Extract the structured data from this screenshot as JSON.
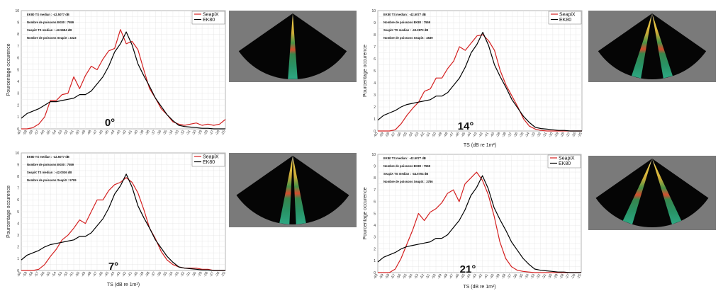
{
  "colors": {
    "seapix": "#d42020",
    "ek80": "#000000",
    "grid": "#e2e2e2",
    "sonar_bg": "#7a7a7a"
  },
  "chart_data": [
    {
      "type": "line",
      "angle": "0°",
      "ylabel": "Pourcentage occurence",
      "xlabel": "",
      "ylim": [
        0,
        10
      ],
      "xlim": [
        -60,
        -25
      ],
      "legend": [
        "SeapiX",
        "EK80"
      ],
      "annotations": [
        "EK80 TS median : -42.5077 dB",
        "Nombre de poissons EK80 : 7559",
        "SeapiX TS median : -42.5684 dB",
        "Nombre de poissons SeapiX : 3223"
      ],
      "x": [
        -60,
        -59,
        -58,
        -57,
        -56,
        -55,
        -54,
        -53,
        -52,
        -51,
        -50,
        -49,
        -48,
        -47,
        -46,
        -45,
        -44,
        -43,
        -42,
        -41,
        -40,
        -39,
        -38,
        -37,
        -36,
        -35,
        -34,
        -33,
        -32,
        -31,
        -30,
        -29,
        -28,
        -27,
        -26,
        -25
      ],
      "series": [
        {
          "name": "SeapiX",
          "values": [
            0.0,
            0.0,
            0.1,
            0.4,
            1.0,
            2.4,
            2.4,
            2.9,
            3.0,
            4.4,
            3.4,
            4.5,
            5.3,
            5.0,
            5.9,
            6.6,
            6.8,
            8.4,
            7.2,
            7.4,
            6.7,
            5.0,
            3.4,
            2.6,
            1.7,
            1.2,
            0.6,
            0.4,
            0.3,
            0.4,
            0.5,
            0.3,
            0.4,
            0.3,
            0.4,
            0.8
          ]
        },
        {
          "name": "EK80",
          "values": [
            0.9,
            1.3,
            1.5,
            1.7,
            2.0,
            2.3,
            2.3,
            2.4,
            2.5,
            2.6,
            2.9,
            2.9,
            3.2,
            3.8,
            4.4,
            5.3,
            6.5,
            7.2,
            8.2,
            7.1,
            5.5,
            4.5,
            3.6,
            2.6,
            1.9,
            1.2,
            0.7,
            0.3,
            0.2,
            0.15,
            0.1,
            0.05,
            0.05,
            0.0,
            0.0,
            0.0
          ]
        }
      ]
    },
    {
      "type": "line",
      "angle": "14°",
      "ylabel": "Pourcentage occurence",
      "xlabel": "TS (dB re 1m²)",
      "ylim": [
        0,
        10
      ],
      "xlim": [
        -60,
        -25
      ],
      "legend": [
        "SeapiX",
        "EK80"
      ],
      "annotations": [
        "EK80 TS median : -42.5077 dB",
        "Nombre de poissons EK80 : 7559",
        "SeapiX TS median : -43.2873 dB",
        "Nombre de poissons SeapiX : 4539"
      ],
      "x": [
        -60,
        -59,
        -58,
        -57,
        -56,
        -55,
        -54,
        -53,
        -52,
        -51,
        -50,
        -49,
        -48,
        -47,
        -46,
        -45,
        -44,
        -43,
        -42,
        -41,
        -40,
        -39,
        -38,
        -37,
        -36,
        -35,
        -34,
        -33,
        -32,
        -31,
        -30,
        -29,
        -28,
        -27,
        -26,
        -25
      ],
      "series": [
        {
          "name": "SeapiX",
          "values": [
            0.0,
            0.0,
            0.0,
            0.1,
            0.6,
            1.3,
            1.9,
            2.4,
            3.3,
            3.5,
            4.4,
            4.4,
            5.2,
            5.8,
            7.0,
            6.7,
            7.3,
            7.9,
            8.0,
            7.5,
            6.7,
            5.0,
            3.8,
            2.9,
            2.0,
            1.0,
            0.4,
            0.15,
            0.05,
            0.0,
            0.0,
            0.0,
            0.0,
            0.0,
            0.0,
            0.0
          ]
        },
        {
          "name": "EK80",
          "values": [
            0.9,
            1.3,
            1.5,
            1.7,
            2.0,
            2.2,
            2.3,
            2.4,
            2.5,
            2.6,
            2.9,
            2.9,
            3.2,
            3.8,
            4.4,
            5.3,
            6.5,
            7.2,
            8.2,
            7.1,
            5.5,
            4.5,
            3.6,
            2.6,
            1.9,
            1.2,
            0.7,
            0.3,
            0.2,
            0.15,
            0.1,
            0.05,
            0.05,
            0.0,
            0.0,
            0.0
          ]
        }
      ]
    },
    {
      "type": "line",
      "angle": "7°",
      "ylabel": "Pourcentage occurence",
      "xlabel": "TS (dB re 1m²)",
      "ylim": [
        0,
        10
      ],
      "xlim": [
        -60,
        -25
      ],
      "legend": [
        "SeapiX",
        "EK80"
      ],
      "annotations": [
        "EK80 TS median : -42.5077 dB",
        "Nombre de poissons EK80 : 7559",
        "SeapiX TS median : -42.0036 dB",
        "Nombre de poissons SeapiX : 5709"
      ],
      "x": [
        -60,
        -59,
        -58,
        -57,
        -56,
        -55,
        -54,
        -53,
        -52,
        -51,
        -50,
        -49,
        -48,
        -47,
        -46,
        -45,
        -44,
        -43,
        -42,
        -41,
        -40,
        -39,
        -38,
        -37,
        -36,
        -35,
        -34,
        -33,
        -32,
        -31,
        -30,
        -29,
        -28,
        -27,
        -26,
        -25
      ],
      "series": [
        {
          "name": "SeapiX",
          "values": [
            0.0,
            0.0,
            0.0,
            0.1,
            0.5,
            1.2,
            1.8,
            2.6,
            3.0,
            3.6,
            4.3,
            4.0,
            5.0,
            6.0,
            6.0,
            6.8,
            7.3,
            7.5,
            7.9,
            7.5,
            6.6,
            5.2,
            3.6,
            2.7,
            1.6,
            0.9,
            0.5,
            0.3,
            0.2,
            0.2,
            0.2,
            0.1,
            0.1,
            0.0,
            0.0,
            0.0
          ]
        },
        {
          "name": "EK80",
          "values": [
            0.9,
            1.3,
            1.5,
            1.7,
            2.0,
            2.2,
            2.3,
            2.4,
            2.5,
            2.6,
            2.9,
            2.9,
            3.2,
            3.8,
            4.4,
            5.3,
            6.5,
            7.2,
            8.2,
            7.1,
            5.5,
            4.5,
            3.6,
            2.6,
            1.9,
            1.2,
            0.7,
            0.3,
            0.2,
            0.15,
            0.1,
            0.05,
            0.05,
            0.0,
            0.0,
            0.0
          ]
        }
      ]
    },
    {
      "type": "line",
      "angle": "21°",
      "ylabel": "Pourcentage occurence",
      "xlabel": "TS (dB re 1m²)",
      "ylim": [
        0,
        10
      ],
      "xlim": [
        -60,
        -25
      ],
      "legend": [
        "SeapiX",
        "EK80"
      ],
      "annotations": [
        "EK80 TS median : -42.5077 dB",
        "Nombre de poissons EK80 : 7559",
        "SeapiX TS median : -44.5704 dB",
        "Nombre de poissons SeapiX : 3786"
      ],
      "x": [
        -60,
        -59,
        -58,
        -57,
        -56,
        -55,
        -54,
        -53,
        -52,
        -51,
        -50,
        -49,
        -48,
        -47,
        -46,
        -45,
        -44,
        -43,
        -42,
        -41,
        -40,
        -39,
        -38,
        -37,
        -36,
        -35,
        -34,
        -33,
        -32,
        -31,
        -30,
        -29,
        -28,
        -27,
        -26,
        -25
      ],
      "series": [
        {
          "name": "SeapiX",
          "values": [
            0.0,
            0.0,
            0.0,
            0.3,
            1.2,
            2.4,
            3.6,
            5.0,
            4.4,
            5.1,
            5.4,
            5.9,
            6.7,
            7.0,
            6.0,
            7.5,
            8.0,
            8.5,
            7.8,
            6.6,
            4.8,
            2.6,
            1.2,
            0.5,
            0.2,
            0.1,
            0.05,
            0.0,
            0.0,
            0.0,
            0.0,
            0.0,
            0.0,
            0.0,
            0.0,
            0.0
          ]
        },
        {
          "name": "EK80",
          "values": [
            0.9,
            1.3,
            1.5,
            1.7,
            2.0,
            2.2,
            2.3,
            2.4,
            2.5,
            2.6,
            2.9,
            2.9,
            3.2,
            3.8,
            4.4,
            5.3,
            6.5,
            7.2,
            8.2,
            7.1,
            5.5,
            4.5,
            3.6,
            2.6,
            1.9,
            1.2,
            0.7,
            0.3,
            0.2,
            0.15,
            0.1,
            0.05,
            0.05,
            0.0,
            0.0,
            0.0
          ]
        }
      ]
    }
  ]
}
